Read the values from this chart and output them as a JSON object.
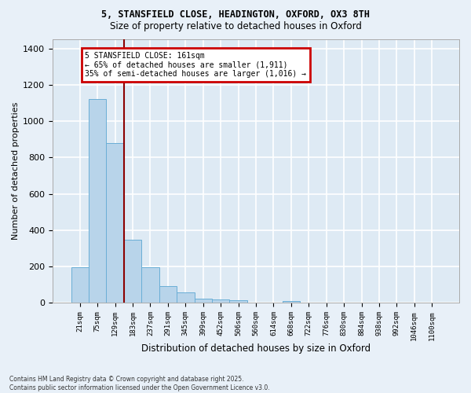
{
  "title_line1": "5, STANSFIELD CLOSE, HEADINGTON, OXFORD, OX3 8TH",
  "title_line2": "Size of property relative to detached houses in Oxford",
  "xlabel": "Distribution of detached houses by size in Oxford",
  "ylabel": "Number of detached properties",
  "bar_color": "#b8d4ea",
  "bar_edge_color": "#6aaed6",
  "bg_color": "#deeaf4",
  "fig_bg_color": "#e8f0f8",
  "grid_color": "#ffffff",
  "categories": [
    "21sqm",
    "75sqm",
    "129sqm",
    "183sqm",
    "237sqm",
    "291sqm",
    "345sqm",
    "399sqm",
    "452sqm",
    "506sqm",
    "560sqm",
    "614sqm",
    "668sqm",
    "722sqm",
    "776sqm",
    "830sqm",
    "884sqm",
    "938sqm",
    "992sqm",
    "1046sqm",
    "1100sqm"
  ],
  "values": [
    195,
    1120,
    880,
    350,
    195,
    95,
    57,
    22,
    18,
    15,
    0,
    0,
    12,
    0,
    0,
    0,
    0,
    0,
    0,
    0,
    0
  ],
  "vline_x_idx": 2.5,
  "vline_color": "#8b0000",
  "annotation_text": "5 STANSFIELD CLOSE: 161sqm\n← 65% of detached houses are smaller (1,911)\n35% of semi-detached houses are larger (1,016) →",
  "annotation_box_color": "#cc0000",
  "footer_text": "Contains HM Land Registry data © Crown copyright and database right 2025.\nContains public sector information licensed under the Open Government Licence v3.0.",
  "ylim": [
    0,
    1450
  ],
  "yticks": [
    0,
    200,
    400,
    600,
    800,
    1000,
    1200,
    1400
  ]
}
